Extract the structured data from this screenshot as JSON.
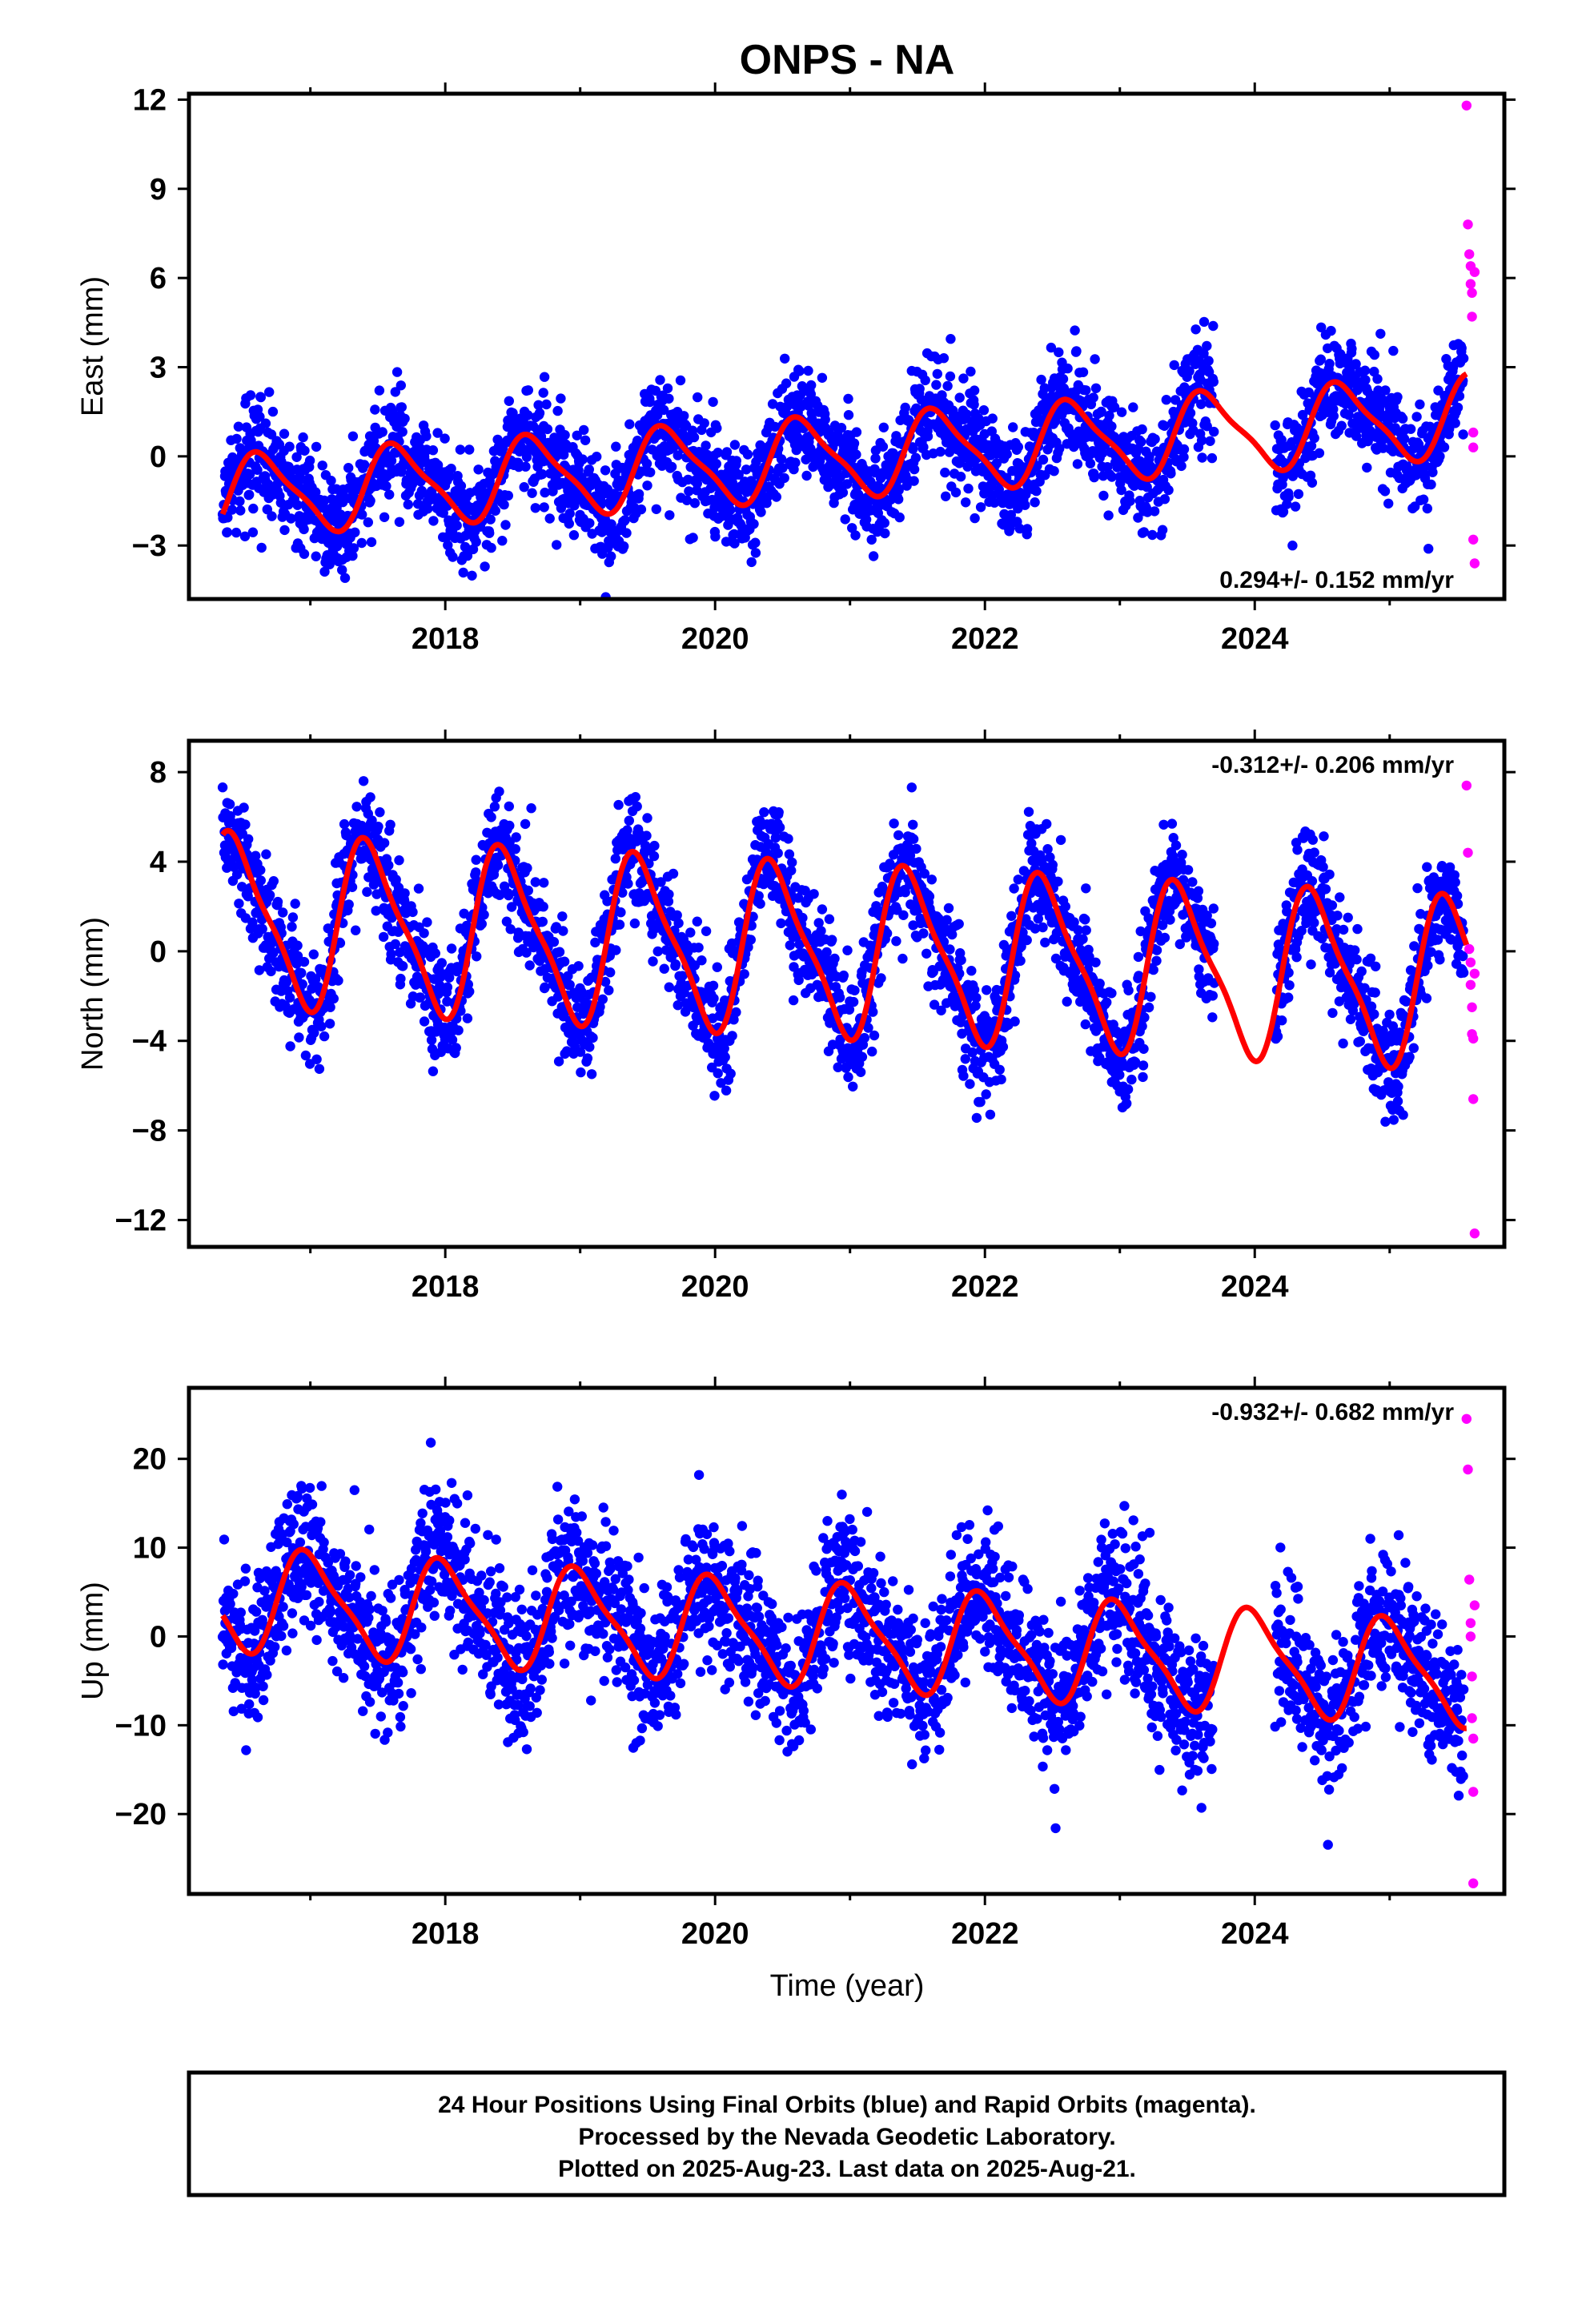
{
  "title": "ONPS - NA",
  "xlabel": "Time (year)",
  "colors": {
    "final": "#0000ff",
    "rapid": "#ff00ff",
    "model": "#ff0000",
    "frame": "#000000"
  },
  "footer": {
    "line1": "24 Hour Positions Using Final Orbits (blue) and Rapid Orbits (magenta).",
    "line2": "Processed by the Nevada Geodetic Laboratory.",
    "line3": "Plotted on 2025-Aug-23. Last data on 2025-Aug-21."
  },
  "chart_data": [
    {
      "type": "scatter",
      "component": "East",
      "ylabel": "East (mm)",
      "rate_text": "0.294+/- 0.152 mm/yr",
      "rate_position": "bottom-right",
      "xlim": [
        2016.1,
        2025.85
      ],
      "ylim": [
        -4.8,
        12.2
      ],
      "yticks": [
        12,
        9,
        6,
        3,
        0,
        -3
      ],
      "ytick_labels": [
        "12",
        "9",
        "6",
        "3",
        "0",
        "−3"
      ],
      "xticks": [
        2018,
        2020,
        2022,
        2024
      ],
      "xtick_labels": [
        "2018",
        "2020",
        "2022",
        "2024"
      ],
      "data_start": 2016.35,
      "final_end": 2025.55,
      "gaps": [
        [
          2023.7,
          2024.15
        ]
      ],
      "model": {
        "trend_mm_per_yr": 0.294,
        "seasonal_amp_mm": 1.3,
        "seasonal_phase_yr": 0.4
      },
      "rapid_orbit_points": {
        "x": [
          2025.57,
          2025.58,
          2025.59,
          2025.6,
          2025.6,
          2025.61,
          2025.61,
          2025.62,
          2025.62,
          2025.62,
          2025.63,
          2025.63
        ],
        "y": [
          11.8,
          7.8,
          6.8,
          6.4,
          5.8,
          5.5,
          4.7,
          0.8,
          0.3,
          -2.8,
          -3.6,
          6.2
        ]
      }
    },
    {
      "type": "scatter",
      "component": "North",
      "ylabel": "North (mm)",
      "rate_text": "-0.312+/- 0.206 mm/yr",
      "rate_position": "top-right",
      "xlim": [
        2016.1,
        2025.85
      ],
      "ylim": [
        -13.2,
        9.4
      ],
      "yticks": [
        8,
        4,
        0,
        -4,
        -8,
        -12
      ],
      "ytick_labels": [
        "8",
        "4",
        "0",
        "−4",
        "−8",
        "−12"
      ],
      "xticks": [
        2018,
        2020,
        2022,
        2024
      ],
      "xtick_labels": [
        "2018",
        "2020",
        "2022",
        "2024"
      ],
      "data_start": 2016.35,
      "final_end": 2025.55,
      "gaps": [
        [
          2023.7,
          2024.15
        ]
      ],
      "model": {
        "trend_mm_per_yr": -0.312,
        "seasonal_amp_mm": 3.6,
        "seasonal_phase_yr": 0.2
      },
      "rapid_orbit_points": {
        "x": [
          2025.57,
          2025.58,
          2025.59,
          2025.6,
          2025.6,
          2025.61,
          2025.61,
          2025.62,
          2025.62,
          2025.63,
          2025.63
        ],
        "y": [
          7.4,
          4.4,
          0.1,
          -0.5,
          -1.5,
          -2.5,
          -3.7,
          -3.9,
          -6.6,
          -12.6,
          -1.0
        ]
      }
    },
    {
      "type": "scatter",
      "component": "Up",
      "ylabel": "Up (mm)",
      "rate_text": "-0.932+/- 0.682 mm/yr",
      "rate_position": "top-right",
      "xlim": [
        2016.1,
        2025.85
      ],
      "ylim": [
        -29,
        28
      ],
      "yticks": [
        20,
        10,
        0,
        -10,
        -20
      ],
      "ytick_labels": [
        "20",
        "10",
        "0",
        "−10",
        "−20"
      ],
      "xticks": [
        2018,
        2020,
        2022,
        2024
      ],
      "xtick_labels": [
        "2018",
        "2020",
        "2022",
        "2024"
      ],
      "data_start": 2016.35,
      "final_end": 2025.55,
      "gaps": [
        [
          2023.7,
          2024.15
        ]
      ],
      "model": {
        "trend_mm_per_yr": -0.932,
        "seasonal_amp_mm": 5.5,
        "seasonal_phase_yr": 0.75
      },
      "rapid_orbit_points": {
        "x": [
          2025.57,
          2025.58,
          2025.59,
          2025.6,
          2025.6,
          2025.61,
          2025.61,
          2025.62,
          2025.62,
          2025.62,
          2025.63
        ],
        "y": [
          24.5,
          18.8,
          6.4,
          1.5,
          0,
          -4.5,
          -9.2,
          -11.5,
          -17.5,
          -27.8,
          3.5
        ]
      }
    }
  ]
}
